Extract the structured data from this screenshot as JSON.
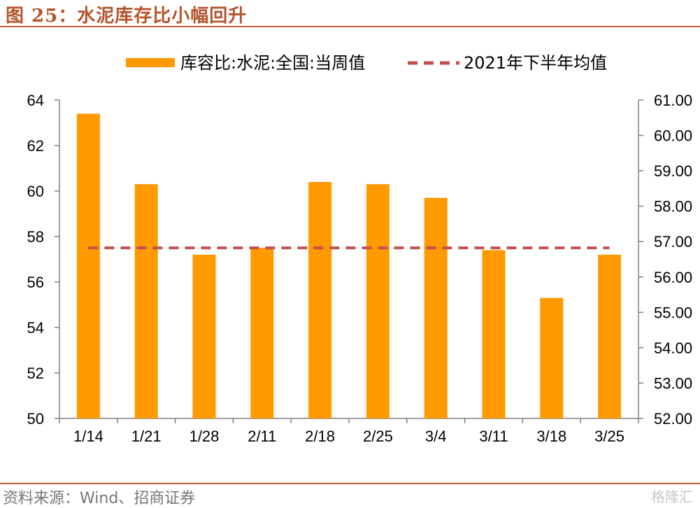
{
  "header": {
    "title": "图 25：水泥库存比小幅回升"
  },
  "footer": {
    "source": "资料来源：Wind、招商证券",
    "watermark": "格隆汇"
  },
  "colors": {
    "bar": "#FF9900",
    "avg_line": "#C0504D",
    "rule": "#C0603A",
    "title": "#B5542B"
  },
  "chart_data": {
    "type": "bar",
    "categories": [
      "1/14",
      "1/21",
      "1/28",
      "2/11",
      "2/18",
      "2/25",
      "3/4",
      "3/11",
      "3/18",
      "3/25"
    ],
    "series": [
      {
        "name": "库容比:水泥:全国:当周值",
        "type": "bar",
        "axis": "left",
        "values": [
          63.4,
          60.3,
          57.2,
          57.5,
          60.4,
          60.3,
          59.7,
          57.4,
          55.3,
          57.2
        ]
      },
      {
        "name": "2021年下半年均值",
        "type": "line",
        "style": "dashed",
        "axis": "left",
        "values": [
          57.5,
          57.5,
          57.5,
          57.5,
          57.5,
          57.5,
          57.5,
          57.5,
          57.5,
          57.5
        ]
      }
    ],
    "y_left": {
      "min": 50,
      "max": 64,
      "ticks": [
        "50",
        "52",
        "54",
        "56",
        "58",
        "60",
        "62",
        "64"
      ]
    },
    "y_right": {
      "min": 52,
      "max": 61,
      "ticks": [
        "52.00",
        "53.00",
        "54.00",
        "55.00",
        "56.00",
        "57.00",
        "58.00",
        "59.00",
        "60.00",
        "61.00"
      ]
    },
    "legend_position": "top",
    "grid": false
  }
}
